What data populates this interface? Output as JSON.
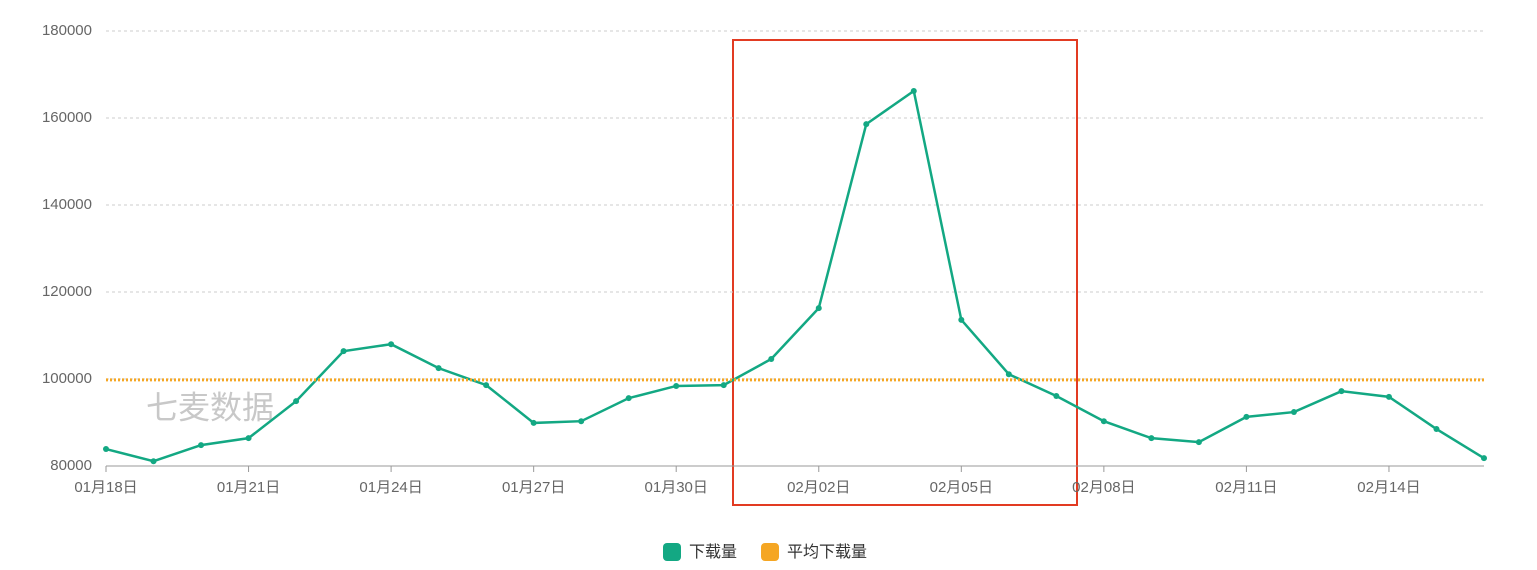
{
  "chart_data": {
    "type": "line",
    "watermark": "七麦数据",
    "categories": [
      "01月18日",
      null,
      null,
      "01月21日",
      null,
      null,
      "01月24日",
      null,
      null,
      "01月27日",
      null,
      null,
      "01月30日",
      null,
      null,
      "02月02日",
      null,
      null,
      "02月05日",
      null,
      null,
      "02月08日",
      null,
      null,
      "02月11日",
      null,
      null,
      "02月14日",
      null,
      null
    ],
    "series": [
      {
        "name": "下载量",
        "color": "#13a883",
        "values": [
          83900,
          81100,
          84800,
          86400,
          94900,
          106400,
          108000,
          102500,
          98600,
          89900,
          90300,
          95600,
          98400,
          98600,
          104600,
          116300,
          158600,
          166200,
          113600,
          101100,
          96100,
          90300,
          86400,
          85500,
          91300,
          92400,
          97200,
          95900,
          88500,
          81800
        ]
      },
      {
        "name": "平均下载量",
        "color": "#f5a623",
        "values": [
          99800,
          99800,
          99800,
          99800,
          99800,
          99800,
          99800,
          99800,
          99800,
          99800,
          99800,
          99800,
          99800,
          99800,
          99800,
          99800,
          99800,
          99800,
          99800,
          99800,
          99800,
          99800,
          99800,
          99800,
          99800,
          99800,
          99800,
          99800,
          99800,
          99800
        ]
      }
    ],
    "ylim": [
      80000,
      180000
    ],
    "yticks": [
      80000,
      100000,
      120000,
      140000,
      160000,
      180000
    ],
    "grid": true
  }
}
